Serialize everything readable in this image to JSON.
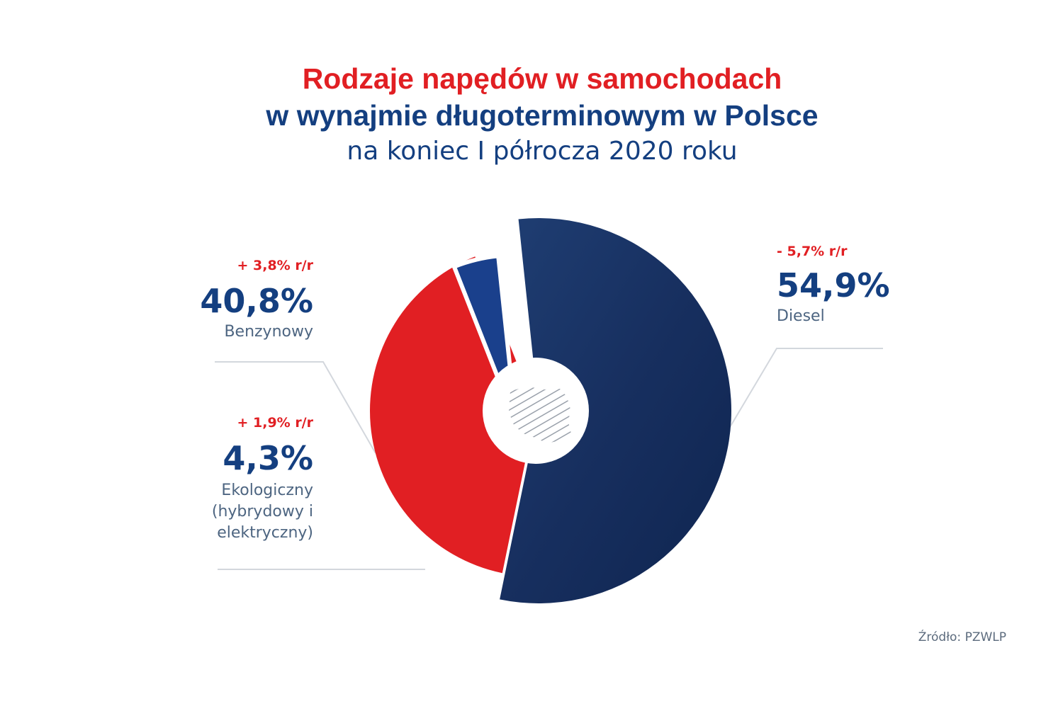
{
  "title": {
    "line1": "Rodzaje napędów w samochodach",
    "line2": "w wynajmie długoterminowym w Polsce",
    "line3": "na koniec I półrocza 2020 roku"
  },
  "chart_data": {
    "type": "pie",
    "series": [
      {
        "name": "Diesel",
        "value": 54.9,
        "value_label": "54,9%",
        "change": "- 5,7% r/r",
        "color": "#15336b"
      },
      {
        "name": "Benzynowy",
        "value": 40.8,
        "value_label": "40,8%",
        "change": "+ 3,8% r/r",
        "color": "#e11f23"
      },
      {
        "name": "Ekologiczny\n(hybrydowy i\nelektryczny)",
        "value": 4.3,
        "value_label": "4,3%",
        "change": "+ 1,9% r/r",
        "color": "#1a408c"
      }
    ]
  },
  "labels": {
    "diesel": {
      "change": "- 5,7% r/r",
      "pct": "54,9%",
      "name": "Diesel"
    },
    "benz": {
      "change": "+ 3,8% r/r",
      "pct": "40,8%",
      "name": "Benzynowy"
    },
    "eko": {
      "change": "+ 1,9% r/r",
      "pct": "4,3%",
      "name_line1": "Ekologiczny",
      "name_line2": "(hybrydowy i",
      "name_line3": "elektryczny)"
    }
  },
  "source": "Źródło: PZWLP",
  "colors": {
    "red": "#e11f23",
    "navy": "#143f80",
    "dark_navy": "#15336b"
  }
}
